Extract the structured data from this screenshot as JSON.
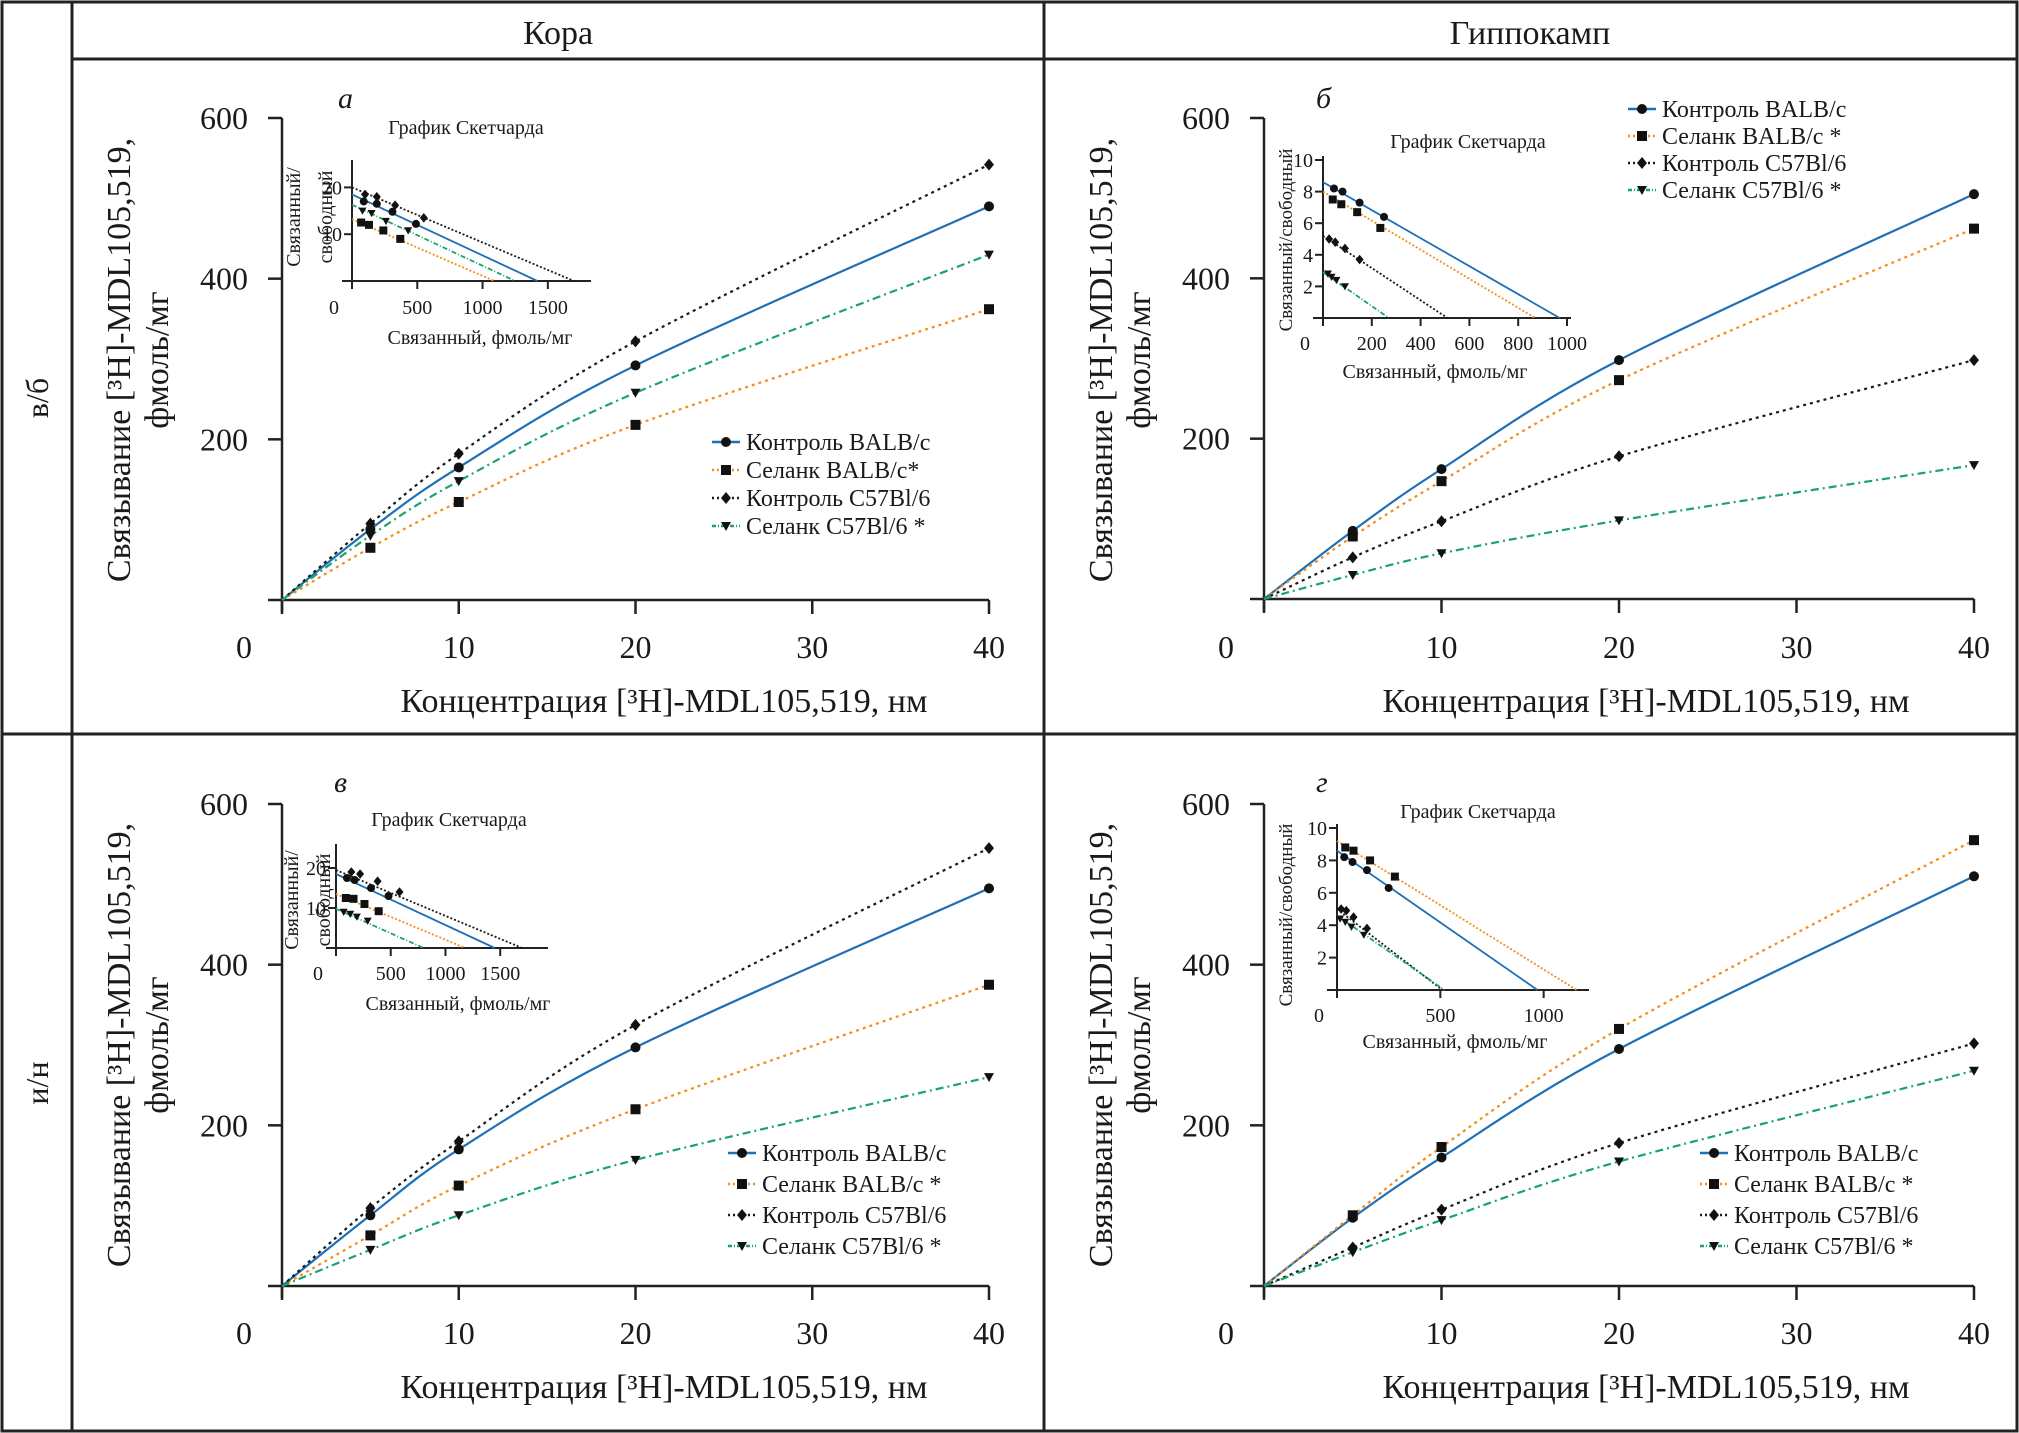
{
  "figure": {
    "column_headers": [
      "Кора",
      "Гиппокамп"
    ],
    "row_labels": [
      "в/б",
      "и/н"
    ]
  },
  "styles": {
    "series_colors": [
      "#1f6fb5",
      "#f28e1c",
      "#1a1a1a",
      "#1aa36b"
    ],
    "series_markers": [
      "circle",
      "square",
      "diamond",
      "triangle-down"
    ],
    "series_dash": [
      "solid",
      "dotted",
      "dotted",
      "dash-dot"
    ]
  },
  "chart_data": [
    {
      "type": "line",
      "panel_letter": "а",
      "region": "Кора",
      "route": "в/б",
      "xlabel": "Концентрация [³H]-MDL105,519, нм",
      "ylabel_line1": "Связывание [³H]-MDL105,519,",
      "ylabel_line2": "фмоль/мг",
      "xlim": [
        0,
        40
      ],
      "ylim": [
        0,
        600
      ],
      "xticks": [
        0,
        10,
        20,
        30,
        40
      ],
      "yticks": [
        0,
        200,
        400,
        600
      ],
      "x": [
        0,
        5,
        10,
        20,
        40
      ],
      "legend_position": "center-right",
      "series": [
        {
          "name": "Контроль BALB/c",
          "values": [
            0,
            88,
            165,
            292,
            490
          ]
        },
        {
          "name": "Селанк BALB/c*",
          "values": [
            0,
            65,
            122,
            218,
            362
          ]
        },
        {
          "name": "Контроль C57Bl/6",
          "values": [
            0,
            95,
            182,
            322,
            542
          ]
        },
        {
          "name": "Селанк C57Bl/6 *",
          "values": [
            0,
            80,
            148,
            258,
            430
          ]
        }
      ],
      "inset": {
        "type": "scatter",
        "title": "График Скетчарда",
        "xlabel": "Связанный, фмоль/мг",
        "ylabel_line1": "Связанный/",
        "ylabel_line2": "свободный",
        "ylabel_single": "",
        "xlim": [
          0,
          1800
        ],
        "ylim": [
          0,
          25
        ],
        "xticks": [
          0,
          500,
          1000,
          1500
        ],
        "xtick_labels": [
          "0",
          "500",
          "1000",
          "1500"
        ],
        "yticks": [
          10,
          20
        ],
        "series": [
          {
            "name": "Контроль BALB/c",
            "points": [
              [
                90,
                17
              ],
              [
                190,
                16.5
              ],
              [
                310,
                14.8
              ],
              [
                490,
                12.2
              ]
            ],
            "line": [
              [
                0,
                18.5
              ],
              [
                1420,
                0
              ]
            ]
          },
          {
            "name": "Селанк BALB/c*",
            "points": [
              [
                70,
                12.5
              ],
              [
                130,
                12
              ],
              [
                240,
                10.8
              ],
              [
                370,
                9
              ]
            ],
            "line": [
              [
                0,
                13.2
              ],
              [
                1090,
                0
              ]
            ]
          },
          {
            "name": "Контроль C57Bl/6",
            "points": [
              [
                100,
                18.5
              ],
              [
                190,
                18
              ],
              [
                330,
                16.2
              ],
              [
                550,
                13.5
              ]
            ],
            "line": [
              [
                0,
                20
              ],
              [
                1700,
                0
              ]
            ]
          },
          {
            "name": "Селанк C57Bl/6 *",
            "points": [
              [
                80,
                15
              ],
              [
                150,
                14.5
              ],
              [
                260,
                12.8
              ],
              [
                430,
                10.8
              ]
            ],
            "line": [
              [
                0,
                16.3
              ],
              [
                1250,
                0
              ]
            ]
          }
        ]
      }
    },
    {
      "type": "line",
      "panel_letter": "б",
      "region": "Гиппокамп",
      "route": "в/б",
      "xlabel": "Концентрация [³H]-MDL105,519, нм",
      "ylabel_line1": "Связывание [³H]-MDL105,519,",
      "ylabel_line2": "фмоль/мг",
      "xlim": [
        0,
        40
      ],
      "ylim": [
        0,
        600
      ],
      "xticks": [
        0,
        10,
        20,
        30,
        40
      ],
      "yticks": [
        0,
        200,
        400,
        600
      ],
      "x": [
        0,
        5,
        10,
        20,
        40
      ],
      "legend_position": "top-right",
      "series": [
        {
          "name": "Контроль BALB/c",
          "values": [
            0,
            85,
            162,
            298,
            505
          ]
        },
        {
          "name": "Селанк BALB/c *",
          "values": [
            0,
            78,
            147,
            273,
            462
          ]
        },
        {
          "name": "Контроль C57Bl/6",
          "values": [
            0,
            52,
            97,
            178,
            298
          ]
        },
        {
          "name": "Селанк C57Bl/6 *",
          "values": [
            0,
            30,
            57,
            98,
            167
          ]
        }
      ],
      "inset": {
        "type": "scatter",
        "title": "График Скетчарда",
        "xlabel": "Связанный, фмоль/мг",
        "ylabel_line1": "",
        "ylabel_line2": "",
        "ylabel_single": "Связанный/свободный",
        "xlim": [
          0,
          1000
        ],
        "ylim": [
          0,
          10
        ],
        "xticks": [
          0,
          200,
          400,
          600,
          800,
          1000
        ],
        "xtick_labels": [
          "0",
          "200",
          "400",
          "600",
          "800",
          "1000"
        ],
        "yticks": [
          2,
          4,
          6,
          8,
          10
        ],
        "series": [
          {
            "name": "Контроль BALB/c",
            "points": [
              [
                45,
                8.2
              ],
              [
                80,
                8
              ],
              [
                150,
                7.3
              ],
              [
                250,
                6.4
              ]
            ],
            "line": [
              [
                0,
                8.6
              ],
              [
                970,
                0
              ]
            ]
          },
          {
            "name": "Селанк BALB/c *",
            "points": [
              [
                40,
                7.5
              ],
              [
                75,
                7.2
              ],
              [
                140,
                6.7
              ],
              [
                235,
                5.7
              ]
            ],
            "line": [
              [
                0,
                8
              ],
              [
                870,
                0
              ]
            ]
          },
          {
            "name": "Контроль C57Bl/6",
            "points": [
              [
                25,
                5
              ],
              [
                50,
                4.8
              ],
              [
                90,
                4.4
              ],
              [
                150,
                3.7
              ]
            ],
            "line": [
              [
                0,
                5.2
              ],
              [
                510,
                0
              ]
            ]
          },
          {
            "name": "Селанк C57Bl/6 *",
            "points": [
              [
                20,
                2.8
              ],
              [
                35,
                2.6
              ],
              [
                55,
                2.4
              ],
              [
                90,
                2
              ]
            ],
            "line": [
              [
                0,
                2.9
              ],
              [
                270,
                0
              ]
            ]
          }
        ]
      }
    },
    {
      "type": "line",
      "panel_letter": "в",
      "region": "Кора",
      "route": "и/н",
      "xlabel": "Концентрация [³H]-MDL105,519, нм",
      "ylabel_line1": "Связывание [³H]-MDL105,519,",
      "ylabel_line2": "фмоль/мг",
      "xlim": [
        0,
        40
      ],
      "ylim": [
        0,
        600
      ],
      "xticks": [
        0,
        10,
        20,
        30,
        40
      ],
      "yticks": [
        0,
        200,
        400,
        600
      ],
      "x": [
        0,
        5,
        10,
        20,
        40
      ],
      "legend_position": "bottom-right",
      "series": [
        {
          "name": "Контроль BALB/c",
          "values": [
            0,
            88,
            170,
            297,
            495
          ]
        },
        {
          "name": "Селанк BALB/c *",
          "values": [
            0,
            63,
            125,
            220,
            375
          ]
        },
        {
          "name": "Контроль C57Bl/6",
          "values": [
            0,
            97,
            180,
            325,
            545
          ]
        },
        {
          "name": "Селанк C57Bl/6 *",
          "values": [
            0,
            45,
            88,
            157,
            260
          ]
        }
      ],
      "inset": {
        "type": "scatter",
        "title": "График Скетчарда",
        "xlabel": "Связанный, фмоль/мг",
        "ylabel_line1": "Связанный/",
        "ylabel_line2": "свободный",
        "ylabel_single": "",
        "xlim": [
          0,
          1900
        ],
        "ylim": [
          0,
          25
        ],
        "xticks": [
          0,
          500,
          1000,
          1500
        ],
        "xtick_labels": [
          "0",
          "500",
          "1000",
          "1500"
        ],
        "yticks": [
          10,
          20
        ],
        "series": [
          {
            "name": "Контроль BALB/c",
            "points": [
              [
                100,
                17.5
              ],
              [
                170,
                17
              ],
              [
                320,
                15
              ],
              [
                480,
                13
              ]
            ],
            "line": [
              [
                0,
                18.5
              ],
              [
                1450,
                0
              ]
            ]
          },
          {
            "name": "Селанк BALB/c *",
            "points": [
              [
                90,
                12.5
              ],
              [
                160,
                12.3
              ],
              [
                260,
                11
              ],
              [
                390,
                9.2
              ]
            ],
            "line": [
              [
                0,
                13.5
              ],
              [
                1180,
                0
              ]
            ]
          },
          {
            "name": "Контроль C57Bl/6",
            "points": [
              [
                140,
                19
              ],
              [
                220,
                18.5
              ],
              [
                380,
                16.7
              ],
              [
                580,
                14
              ]
            ],
            "line": [
              [
                0,
                19.5
              ],
              [
                1700,
                0
              ]
            ]
          },
          {
            "name": "Селанк C57Bl/6 *",
            "points": [
              [
                70,
                9
              ],
              [
                130,
                8.5
              ],
              [
                190,
                7.8
              ],
              [
                290,
                6.8
              ]
            ],
            "line": [
              [
                0,
                9.8
              ],
              [
                800,
                0
              ]
            ]
          }
        ]
      }
    },
    {
      "type": "line",
      "panel_letter": "г",
      "region": "Гиппокамп",
      "route": "и/н",
      "xlabel": "Концентрация [³H]-MDL105,519, нм",
      "ylabel_line1": "Связывание [³H]-MDL105,519,",
      "ylabel_line2": "фмоль/мг",
      "xlim": [
        0,
        40
      ],
      "ylim": [
        0,
        600
      ],
      "xticks": [
        0,
        10,
        20,
        30,
        40
      ],
      "yticks": [
        0,
        200,
        400,
        600
      ],
      "x": [
        0,
        5,
        10,
        20,
        40
      ],
      "legend_position": "bottom-right",
      "series": [
        {
          "name": "Контроль BALB/c",
          "values": [
            0,
            85,
            160,
            295,
            510
          ]
        },
        {
          "name": "Селанк BALB/c *",
          "values": [
            0,
            88,
            173,
            320,
            555
          ]
        },
        {
          "name": "Контроль C57Bl/6",
          "values": [
            0,
            48,
            95,
            178,
            302
          ]
        },
        {
          "name": "Селанк C57Bl/6 *",
          "values": [
            0,
            42,
            82,
            155,
            268
          ]
        }
      ],
      "inset": {
        "type": "scatter",
        "title": "График Скетчарда",
        "xlabel": "Связанный, фмоль/мг",
        "ylabel_line1": "",
        "ylabel_line2": "",
        "ylabel_single": "Связанный/свободный",
        "xlim": [
          0,
          1200
        ],
        "ylim": [
          0,
          10
        ],
        "xticks": [
          0,
          500,
          1000
        ],
        "xtick_labels": [
          "0",
          "500",
          "1000"
        ],
        "yticks": [
          2,
          4,
          6,
          8,
          10
        ],
        "series": [
          {
            "name": "Контроль BALB/c",
            "points": [
              [
                35,
                8.2
              ],
              [
                75,
                7.9
              ],
              [
                145,
                7.4
              ],
              [
                250,
                6.3
              ]
            ],
            "line": [
              [
                0,
                8.6
              ],
              [
                970,
                0
              ]
            ]
          },
          {
            "name": "Селанк BALB/c *",
            "points": [
              [
                40,
                8.8
              ],
              [
                80,
                8.6
              ],
              [
                160,
                8
              ],
              [
                280,
                7
              ]
            ],
            "line": [
              [
                0,
                9.2
              ],
              [
                1160,
                0
              ]
            ]
          },
          {
            "name": "Контроль C57Bl/6",
            "points": [
              [
                20,
                5
              ],
              [
                45,
                4.9
              ],
              [
                80,
                4.5
              ],
              [
                145,
                3.8
              ]
            ],
            "line": [
              [
                0,
                5
              ],
              [
                510,
                0
              ]
            ]
          },
          {
            "name": "Селанк C57Bl/6 *",
            "points": [
              [
                15,
                4.4
              ],
              [
                40,
                4.2
              ],
              [
                70,
                3.9
              ],
              [
                130,
                3.4
              ]
            ],
            "line": [
              [
                0,
                4.6
              ],
              [
                520,
                0
              ]
            ]
          }
        ]
      }
    }
  ]
}
